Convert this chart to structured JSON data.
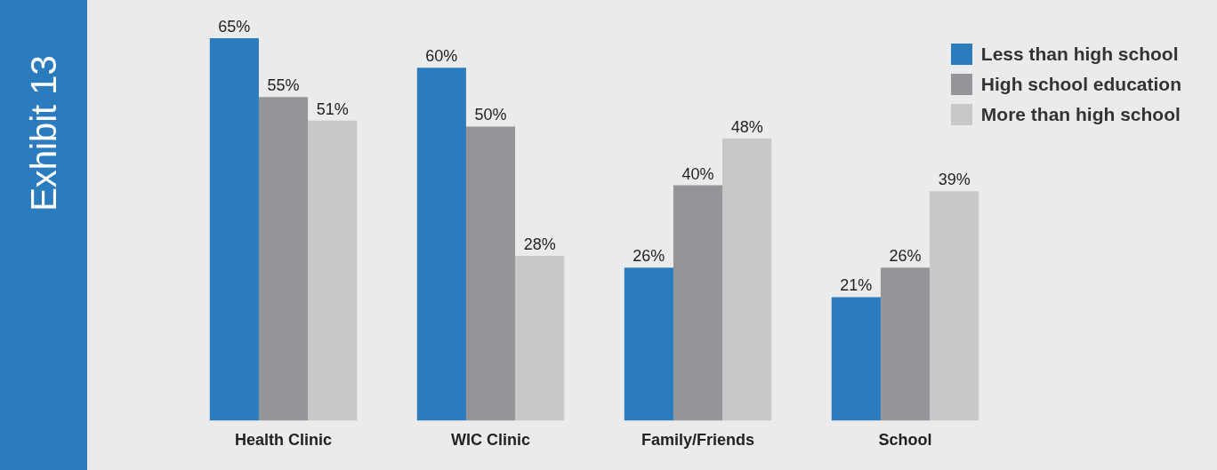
{
  "chart_data": {
    "type": "bar",
    "title": "Exhibit 13",
    "categories": [
      "Health Clinic",
      "WIC Clinic",
      "Family/Friends",
      "School"
    ],
    "series": [
      {
        "name": "Less than high school",
        "color": "#2b7bbf",
        "values": [
          65,
          60,
          26,
          21
        ],
        "value_labels": [
          "65%",
          "60%",
          "26%",
          "21%"
        ]
      },
      {
        "name": "High school education",
        "color": "#939598",
        "values": [
          55,
          50,
          40,
          26
        ],
        "value_labels": [
          "55%",
          "50%",
          "40%",
          "26%"
        ]
      },
      {
        "name": "More than high school",
        "color": "#c8c8c9",
        "values": [
          51,
          28,
          48,
          39
        ],
        "value_labels": [
          "51%",
          "28%",
          "48%",
          "39%"
        ]
      }
    ],
    "grid": false,
    "legend": "top right"
  }
}
